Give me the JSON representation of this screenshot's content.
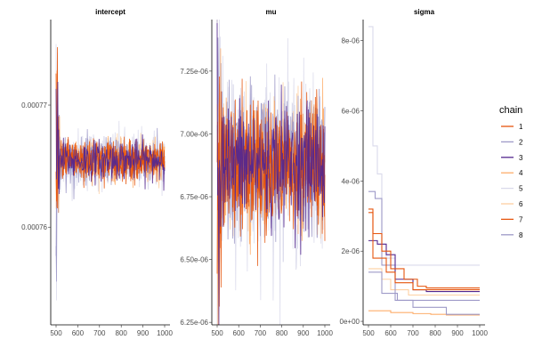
{
  "chart_data": {
    "type": "line",
    "x_range": [
      500,
      1000
    ],
    "x_ticks": [
      500,
      600,
      700,
      800,
      900,
      1000
    ],
    "panels": [
      {
        "title": "intercept",
        "ylim": [
          0.000752,
          0.000777
        ],
        "y_ticks": [
          0.00076,
          0.00077
        ],
        "y_tick_labels": [
          "0.00076",
          "0.00077"
        ],
        "center": 0.0007655,
        "spread": 8e-07,
        "burn_spread": 4.5e-06
      },
      {
        "title": "mu",
        "ylim": [
          6.24e-06,
          7.455e-06
        ],
        "y_ticks": [
          6.25e-06,
          6.5e-06,
          6.75e-06,
          7e-06,
          7.25e-06
        ],
        "y_tick_labels": [
          "6.25e-06",
          "6.50e-06",
          "6.75e-06",
          "7.00e-06",
          "7.25e-06"
        ],
        "center": 6.88e-06,
        "spread": 1.2e-07,
        "burn_spread": 2.8e-07
      },
      {
        "title": "sigma",
        "ylim": [
          -1e-07,
          8.6e-06
        ],
        "y_ticks": [
          0,
          2e-06,
          4e-06,
          6e-06,
          8e-06
        ],
        "y_tick_labels": [
          "0e+00",
          "2e-06",
          "4e-06",
          "6e-06",
          "8e-06"
        ],
        "step_series": [
          {
            "chain": "1",
            "points": [
              [
                500,
                3.2e-06
              ],
              [
                520,
                2.5e-06
              ],
              [
                560,
                2e-06
              ],
              [
                600,
                1.5e-06
              ],
              [
                660,
                1.2e-06
              ],
              [
                720,
                1e-06
              ],
              [
                760,
                9.5e-07
              ],
              [
                1000,
                9.5e-07
              ]
            ]
          },
          {
            "chain": "2",
            "points": [
              [
                500,
                1.4e-06
              ],
              [
                560,
                8e-07
              ],
              [
                630,
                6e-07
              ],
              [
                1000,
                6e-07
              ]
            ]
          },
          {
            "chain": "3",
            "points": [
              [
                500,
                2.3e-06
              ],
              [
                540,
                2.2e-06
              ],
              [
                580,
                1.9e-06
              ],
              [
                620,
                1.2e-06
              ],
              [
                700,
                9e-07
              ],
              [
                760,
                8.5e-07
              ],
              [
                1000,
                8.5e-07
              ]
            ]
          },
          {
            "chain": "4",
            "points": [
              [
                500,
                3e-07
              ],
              [
                600,
                2.5e-07
              ],
              [
                700,
                2.2e-07
              ],
              [
                780,
                2e-07
              ],
              [
                850,
                1.8e-07
              ],
              [
                1000,
                1.8e-07
              ]
            ]
          },
          {
            "chain": "5",
            "points": [
              [
                500,
                8.4e-06
              ],
              [
                520,
                5e-06
              ],
              [
                540,
                4.2e-06
              ],
              [
                560,
                2.2e-06
              ],
              [
                580,
                1.8e-06
              ],
              [
                620,
                1.6e-06
              ],
              [
                1000,
                1.6e-06
              ]
            ]
          },
          {
            "chain": "6",
            "points": [
              [
                500,
                1.5e-06
              ],
              [
                560,
                1.2e-06
              ],
              [
                600,
                9e-07
              ],
              [
                680,
                7.5e-07
              ],
              [
                1000,
                7.5e-07
              ]
            ]
          },
          {
            "chain": "7",
            "points": [
              [
                500,
                3.1e-06
              ],
              [
                520,
                1.8e-06
              ],
              [
                580,
                1.4e-06
              ],
              [
                620,
                1.1e-06
              ],
              [
                700,
                9e-07
              ],
              [
                1000,
                9e-07
              ]
            ]
          },
          {
            "chain": "8",
            "points": [
              [
                500,
                3.7e-06
              ],
              [
                530,
                3.5e-06
              ],
              [
                560,
                1.6e-06
              ],
              [
                620,
                6e-07
              ],
              [
                700,
                4e-07
              ],
              [
                850,
                2e-07
              ],
              [
                1000,
                2e-07
              ]
            ]
          }
        ]
      }
    ],
    "legend": {
      "title": "chain",
      "placement": "right",
      "entries": [
        {
          "label": "1",
          "color": "#e6550d"
        },
        {
          "label": "2",
          "color": "#9e9ac8"
        },
        {
          "label": "3",
          "color": "#54278f"
        },
        {
          "label": "4",
          "color": "#fdae6b"
        },
        {
          "label": "5",
          "color": "#dadaeb"
        },
        {
          "label": "6",
          "color": "#fdd0a2"
        },
        {
          "label": "7",
          "color": "#e6550d"
        },
        {
          "label": "8",
          "color": "#9e9ac8"
        }
      ]
    },
    "grid": false
  }
}
